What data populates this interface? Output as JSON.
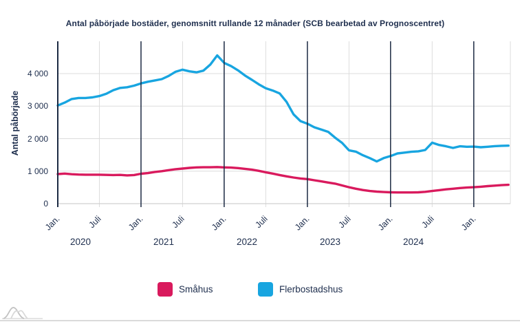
{
  "colors": {
    "text_navy": "#20304f",
    "grid_light": "#dcdcdc",
    "axis_dark": "#1b2942",
    "bottom_rule": "#dadada",
    "logo_gray_dark": "#c2c2c2",
    "logo_gray_light": "#d9d9d9"
  },
  "chart_data": {
    "type": "line",
    "title": "Antal påbörjade bostäder, genomsnitt rullande 12 månader (SCB bearbetad av Prognoscentret)",
    "ylabel": "Antal påbörjade",
    "xlabel": "",
    "x_start": "2020-01",
    "x_end": "2025-06",
    "x_frequency": "monthly",
    "ylim": [
      0,
      4800
    ],
    "y_ticks": [
      0,
      1000,
      2000,
      3000,
      4000
    ],
    "y_tick_labels": [
      "0",
      "1 000",
      "2 000",
      "3 000",
      "4 000"
    ],
    "x_tick_labels": [
      "Jan.",
      "Juli",
      "Jan.",
      "Juli",
      "Jan.",
      "Juli",
      "Jan.",
      "Juli",
      "Jan.",
      "Juli",
      "Jan."
    ],
    "year_labels": [
      "2020",
      "2021",
      "2022",
      "2023",
      "2024"
    ],
    "grid": {
      "horizontal": true,
      "vertical_dark_at_january": true,
      "vertical_light_at_july": true
    },
    "legend_position": "bottom",
    "series": [
      {
        "name": "Småhus",
        "color": "#d91a5d",
        "values": [
          910,
          925,
          905,
          895,
          890,
          890,
          890,
          885,
          880,
          885,
          870,
          880,
          920,
          940,
          975,
          1000,
          1030,
          1060,
          1080,
          1100,
          1115,
          1120,
          1120,
          1125,
          1115,
          1110,
          1095,
          1070,
          1045,
          1010,
          965,
          925,
          880,
          840,
          805,
          775,
          755,
          720,
          685,
          650,
          615,
          560,
          505,
          460,
          420,
          390,
          370,
          358,
          350,
          345,
          345,
          345,
          350,
          365,
          390,
          415,
          440,
          460,
          480,
          495,
          505,
          520,
          540,
          555,
          570,
          580
        ]
      },
      {
        "name": "Flerbostadshus",
        "color": "#18a5e0",
        "values": [
          3020,
          3110,
          3220,
          3250,
          3250,
          3270,
          3310,
          3380,
          3490,
          3560,
          3580,
          3630,
          3700,
          3750,
          3790,
          3830,
          3930,
          4060,
          4120,
          4070,
          4040,
          4090,
          4280,
          4560,
          4330,
          4230,
          4100,
          3940,
          3810,
          3670,
          3550,
          3480,
          3390,
          3130,
          2750,
          2540,
          2460,
          2350,
          2280,
          2210,
          2030,
          1870,
          1640,
          1600,
          1490,
          1400,
          1300,
          1400,
          1465,
          1545,
          1570,
          1595,
          1610,
          1650,
          1875,
          1805,
          1765,
          1715,
          1765,
          1750,
          1755,
          1735,
          1750,
          1770,
          1780,
          1785
        ]
      }
    ]
  }
}
